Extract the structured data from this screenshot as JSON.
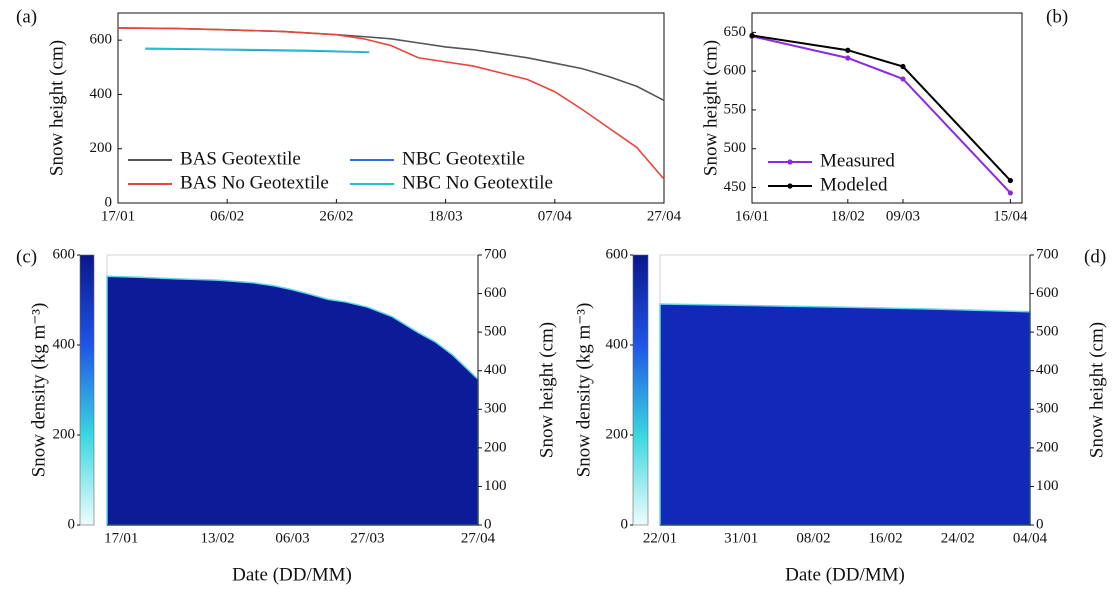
{
  "chart_data": [
    {
      "type": "line",
      "panel_label": "(a)",
      "ylabel": "Snow height (cm)",
      "xlim": [
        "17/01",
        "27/04"
      ],
      "xticks": [
        "17/01",
        "06/02",
        "26/02",
        "18/03",
        "07/04",
        "27/04"
      ],
      "ylim": [
        0,
        700
      ],
      "yticks": [
        0,
        200,
        400,
        600
      ],
      "legend": "lower left",
      "series": [
        {
          "name": "BAS Geotextile",
          "color": "#555555",
          "x": [
            "17/01",
            "27/01",
            "06/02",
            "16/02",
            "26/02",
            "03/03",
            "08/03",
            "13/03",
            "18/03",
            "23/03",
            "28/03",
            "02/04",
            "07/04",
            "12/04",
            "17/04",
            "22/04",
            "27/04"
          ],
          "values": [
            645,
            643,
            638,
            632,
            620,
            613,
            605,
            590,
            575,
            565,
            550,
            535,
            515,
            495,
            465,
            430,
            378
          ]
        },
        {
          "name": "BAS No Geotextile",
          "color": "#e8453c",
          "x": [
            "17/01",
            "27/01",
            "06/02",
            "16/02",
            "26/02",
            "03/03",
            "08/03",
            "13/03",
            "18/03",
            "23/03",
            "28/03",
            "02/04",
            "07/04",
            "12/04",
            "17/04",
            "22/04",
            "27/04"
          ],
          "values": [
            645,
            643,
            638,
            632,
            620,
            605,
            580,
            535,
            520,
            505,
            480,
            455,
            410,
            345,
            275,
            205,
            88
          ]
        },
        {
          "name": "NBC Geotextile",
          "color": "#2f6fd6",
          "x": [
            "22/01",
            "01/02",
            "11/02",
            "21/02",
            "04/03"
          ],
          "values": [
            568,
            566,
            563,
            560,
            555
          ]
        },
        {
          "name": "NBC No Geotextile",
          "color": "#22c3d0",
          "x": [
            "22/01",
            "01/02",
            "11/02",
            "21/02",
            "04/03"
          ],
          "values": [
            570,
            567,
            565,
            562,
            556
          ]
        }
      ]
    },
    {
      "type": "line",
      "panel_label": "(b)",
      "ylabel": "Snow height (cm)",
      "xlim": [
        "16/01",
        "19/04"
      ],
      "xticks": [
        "16/01",
        "18/02",
        "09/03",
        "15/04"
      ],
      "ylim": [
        430,
        675
      ],
      "yticks": [
        450,
        500,
        550,
        600,
        650
      ],
      "legend": "lower left",
      "markers": true,
      "series": [
        {
          "name": "Measured",
          "color": "#8a2be2",
          "x": [
            "16/01",
            "18/02",
            "09/03",
            "15/04"
          ],
          "values": [
            645,
            617,
            590,
            443
          ]
        },
        {
          "name": "Modeled",
          "color": "#000000",
          "x": [
            "16/01",
            "18/02",
            "09/03",
            "15/04"
          ],
          "values": [
            646,
            627,
            606,
            459
          ]
        }
      ]
    },
    {
      "type": "heatmap",
      "panel_label": "(c)",
      "ylabel": "Snow  density (kg m⁻³)",
      "y2label": "Snow  height (cm)",
      "xlabel": "Date (DD/MM)",
      "xlim": [
        "13/01",
        "27/04"
      ],
      "xticks": [
        "17/01",
        "13/02",
        "06/03",
        "27/03",
        "27/04"
      ],
      "ylim": [
        0,
        600
      ],
      "yticks": [
        0,
        200,
        400,
        600
      ],
      "y2lim": [
        0,
        700
      ],
      "y2ticks": [
        0,
        100,
        200,
        300,
        400,
        500,
        600,
        700
      ],
      "colormap": [
        "#eefcfc",
        "#3ad6e0",
        "#1f55e6",
        "#0a168c"
      ],
      "series": [
        {
          "color": "#0c1c98",
          "edge_color": "#5fd8ee",
          "axis": "y2",
          "x": [
            "13/01",
            "23/01",
            "02/02",
            "13/02",
            "23/02",
            "01/03",
            "06/03",
            "11/03",
            "16/03",
            "21/03",
            "27/03",
            "03/04",
            "10/04",
            "15/04",
            "20/04",
            "27/04"
          ],
          "values": [
            645,
            642,
            638,
            635,
            628,
            620,
            610,
            598,
            585,
            578,
            565,
            540,
            500,
            475,
            440,
            378
          ]
        }
      ]
    },
    {
      "type": "heatmap",
      "panel_label": "(d)",
      "ylabel": "Snow  density (kg m⁻³)",
      "y2label": "Snow  height (cm)",
      "xlabel": "Date (DD/MM)",
      "xlim": [
        "22/01",
        "04/03"
      ],
      "xticks": [
        "22/01",
        "31/01",
        "08/02",
        "16/02",
        "24/02",
        {
          "value": "04/03",
          "label": "04/04"
        }
      ],
      "ylim": [
        0,
        600
      ],
      "yticks": [
        0,
        200,
        400,
        600
      ],
      "y2lim": [
        0,
        700
      ],
      "y2ticks": [
        0,
        100,
        200,
        300,
        400,
        500,
        600,
        700
      ],
      "colormap": [
        "#eefcfc",
        "#3ad6e0",
        "#1f55e6",
        "#0a168c"
      ],
      "series": [
        {
          "color": "#1228b8",
          "edge_color": "#5fd8ee",
          "axis": "y2",
          "x": [
            "22/01",
            "01/02",
            "11/02",
            "21/02",
            "04/03"
          ],
          "values": [
            573,
            569,
            565,
            560,
            553
          ]
        }
      ]
    }
  ]
}
